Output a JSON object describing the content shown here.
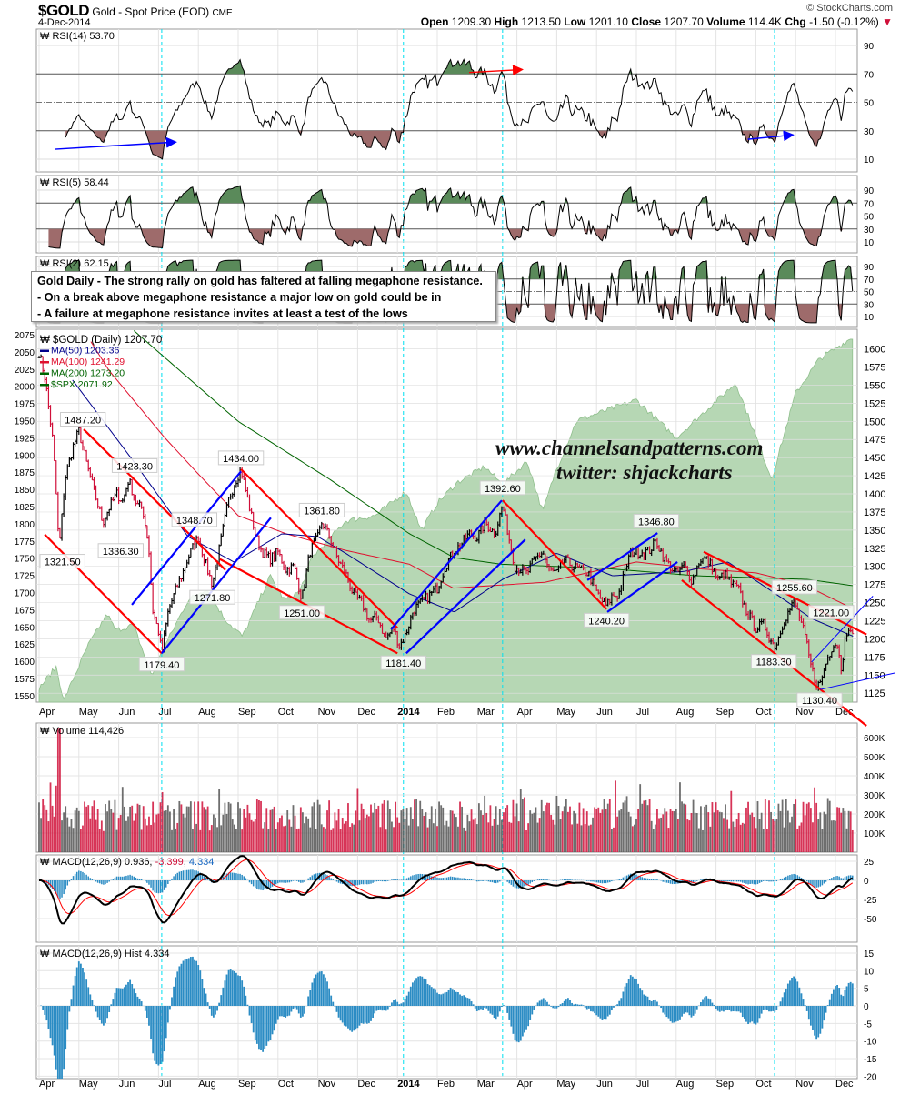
{
  "header": {
    "symbol": "$GOLD",
    "name": "Gold - Spot Price (EOD)",
    "exchange": "CME",
    "date": "4-Dec-2014",
    "brand": "© StockCharts.com",
    "open_label": "Open",
    "open": "1209.30",
    "high_label": "High",
    "high": "1213.50",
    "low_label": "Low",
    "low": "1201.10",
    "close_label": "Close",
    "close": "1207.70",
    "volume_label": "Volume",
    "volume": "114.4K",
    "chg_label": "Chg",
    "chg": "-1.50 (-0.12%)"
  },
  "note": {
    "title": "Gold Daily - The strong rally on gold has faltered at falling megaphone resistance.",
    "line1": "- On a break above megaphone resistance a major low on gold could be in",
    "line2": "- A failure at megaphone resistance invites at least a test of the lows"
  },
  "watermark": {
    "site": "www.channelsandpatterns.com",
    "twitter": "twitter: shjackcharts"
  },
  "chart_data": {
    "type": "line",
    "title": "$GOLD (Daily) 1207.70",
    "colors": {
      "up": "#000000",
      "down": "#d0103a",
      "ma50": "#00008b",
      "ma100": "#e0102e",
      "ma200": "#006400",
      "spx": "#b6d7b4",
      "spx_line": "#8fbf8c",
      "channel_red": "#ff0000",
      "channel_blue": "#0000ff",
      "vline": "#00e0f0",
      "rsi_hi": "#5a8a5a",
      "rsi_lo": "#9e6b6b",
      "macd": "#000000",
      "signal": "#ff0000",
      "hist": "#2b8cc4"
    },
    "x_months": [
      "Apr",
      "May",
      "Jun",
      "Jul",
      "Aug",
      "Sep",
      "Oct",
      "Nov",
      "Dec",
      "2014",
      "Feb",
      "Mar",
      "Apr",
      "May",
      "Jun",
      "Jul",
      "Aug",
      "Sep",
      "Oct",
      "Nov",
      "Dec"
    ],
    "x_range_months": [
      0,
      20.47
    ],
    "vertical_markers_month": [
      3.08,
      9.15,
      11.64,
      18.47
    ],
    "gold_axis": {
      "ticks": [
        1600,
        1575,
        1550,
        1525,
        1500,
        1475,
        1450,
        1425,
        1400,
        1375,
        1350,
        1325,
        1300,
        1275,
        1250,
        1225,
        1200,
        1175,
        1150,
        1125
      ],
      "range": [
        1106,
        1610
      ]
    },
    "spx_axis": {
      "ticks": [
        2075,
        2050,
        2025,
        2000,
        1975,
        1950,
        1925,
        1900,
        1875,
        1850,
        1825,
        1800,
        1775,
        1750,
        1725,
        1700,
        1675,
        1650,
        1625,
        1600,
        1575,
        1550
      ],
      "range": [
        1534,
        2090
      ]
    },
    "legend": [
      {
        "label": "$GOLD (Daily)",
        "value": "1207.70",
        "color": "#000000"
      },
      {
        "label": "MA(50)",
        "value": "1203.36",
        "color": "#00008b"
      },
      {
        "label": "MA(100)",
        "value": "1241.29",
        "color": "#e0102e"
      },
      {
        "label": "MA(200)",
        "value": "1273.20",
        "color": "#006400"
      },
      {
        "label": "$SPX",
        "value": "2071.92",
        "color": "#006400"
      }
    ],
    "gold_keypoints": [
      [
        0,
        1595
      ],
      [
        0.15,
        1560
      ],
      [
        0.35,
        1470
      ],
      [
        0.45,
        1380
      ],
      [
        0.5,
        1321
      ],
      [
        0.65,
        1420
      ],
      [
        0.85,
        1465
      ],
      [
        1.0,
        1487
      ],
      [
        1.2,
        1440
      ],
      [
        1.4,
        1400
      ],
      [
        1.6,
        1360
      ],
      [
        1.75,
        1380
      ],
      [
        1.95,
        1400
      ],
      [
        2.1,
        1390
      ],
      [
        2.25,
        1420
      ],
      [
        2.45,
        1385
      ],
      [
        2.6,
        1380
      ],
      [
        2.75,
        1330
      ],
      [
        2.85,
        1240
      ],
      [
        3.0,
        1210
      ],
      [
        3.08,
        1180
      ],
      [
        3.25,
        1240
      ],
      [
        3.45,
        1270
      ],
      [
        3.6,
        1290
      ],
      [
        3.8,
        1320
      ],
      [
        4.0,
        1340
      ],
      [
        4.2,
        1300
      ],
      [
        4.35,
        1275
      ],
      [
        4.55,
        1330
      ],
      [
        4.75,
        1390
      ],
      [
        4.95,
        1420
      ],
      [
        5.07,
        1434
      ],
      [
        5.25,
        1390
      ],
      [
        5.45,
        1340
      ],
      [
        5.6,
        1320
      ],
      [
        5.8,
        1310
      ],
      [
        6.0,
        1320
      ],
      [
        6.2,
        1295
      ],
      [
        6.4,
        1300
      ],
      [
        6.6,
        1255
      ],
      [
        6.8,
        1320
      ],
      [
        7.0,
        1340
      ],
      [
        7.1,
        1361
      ],
      [
        7.3,
        1340
      ],
      [
        7.5,
        1310
      ],
      [
        7.7,
        1290
      ],
      [
        7.9,
        1260
      ],
      [
        8.1,
        1250
      ],
      [
        8.3,
        1225
      ],
      [
        8.5,
        1230
      ],
      [
        8.7,
        1200
      ],
      [
        8.9,
        1215
      ],
      [
        9.05,
        1190
      ],
      [
        9.2,
        1205
      ],
      [
        9.4,
        1240
      ],
      [
        9.6,
        1250
      ],
      [
        9.8,
        1260
      ],
      [
        10.0,
        1270
      ],
      [
        10.2,
        1300
      ],
      [
        10.4,
        1320
      ],
      [
        10.6,
        1330
      ],
      [
        10.8,
        1345
      ],
      [
        11.0,
        1340
      ],
      [
        11.2,
        1360
      ],
      [
        11.45,
        1345
      ],
      [
        11.64,
        1385
      ],
      [
        11.8,
        1340
      ],
      [
        11.95,
        1300
      ],
      [
        12.1,
        1295
      ],
      [
        12.25,
        1290
      ],
      [
        12.45,
        1310
      ],
      [
        12.65,
        1320
      ],
      [
        12.8,
        1295
      ],
      [
        13.0,
        1290
      ],
      [
        13.2,
        1310
      ],
      [
        13.4,
        1300
      ],
      [
        13.6,
        1295
      ],
      [
        13.8,
        1290
      ],
      [
        13.95,
        1270
      ],
      [
        14.1,
        1255
      ],
      [
        14.25,
        1245
      ],
      [
        14.4,
        1260
      ],
      [
        14.55,
        1260
      ],
      [
        14.7,
        1290
      ],
      [
        14.85,
        1320
      ],
      [
        15.1,
        1320
      ],
      [
        15.3,
        1320
      ],
      [
        15.5,
        1335
      ],
      [
        15.7,
        1310
      ],
      [
        15.85,
        1300
      ],
      [
        16.0,
        1290
      ],
      [
        16.2,
        1300
      ],
      [
        16.4,
        1280
      ],
      [
        16.6,
        1310
      ],
      [
        16.75,
        1310
      ],
      [
        16.9,
        1300
      ],
      [
        17.05,
        1280
      ],
      [
        17.2,
        1290
      ],
      [
        17.4,
        1275
      ],
      [
        17.55,
        1270
      ],
      [
        17.75,
        1240
      ],
      [
        18.0,
        1215
      ],
      [
        18.2,
        1220
      ],
      [
        18.4,
        1195
      ],
      [
        18.5,
        1190
      ],
      [
        18.7,
        1225
      ],
      [
        18.9,
        1245
      ],
      [
        18.97,
        1250
      ],
      [
        19.1,
        1230
      ],
      [
        19.25,
        1200
      ],
      [
        19.35,
        1170
      ],
      [
        19.5,
        1140
      ],
      [
        19.6,
        1135
      ],
      [
        19.75,
        1165
      ],
      [
        19.95,
        1195
      ],
      [
        20.08,
        1190
      ],
      [
        20.15,
        1150
      ],
      [
        20.25,
        1215
      ],
      [
        20.35,
        1205
      ],
      [
        20.45,
        1207.7
      ]
    ],
    "ma50": [
      [
        0.84,
        1557
      ],
      [
        2.37,
        1445
      ],
      [
        3.74,
        1341
      ],
      [
        4.89,
        1306
      ],
      [
        6.1,
        1345
      ],
      [
        7.0,
        1341
      ],
      [
        7.7,
        1318
      ],
      [
        9.3,
        1262
      ],
      [
        10.43,
        1237
      ],
      [
        11.64,
        1282
      ],
      [
        13.0,
        1318
      ],
      [
        14.4,
        1287
      ],
      [
        16.2,
        1293
      ],
      [
        17.3,
        1306
      ],
      [
        18.5,
        1262
      ],
      [
        19.4,
        1228
      ],
      [
        20.45,
        1203.36
      ]
    ],
    "ma100": [
      [
        1.3,
        1610
      ],
      [
        1.76,
        1570
      ],
      [
        3.13,
        1479
      ],
      [
        3.97,
        1429
      ],
      [
        5.0,
        1370
      ],
      [
        6.2,
        1345
      ],
      [
        7.7,
        1322
      ],
      [
        9.3,
        1303
      ],
      [
        10.4,
        1270
      ],
      [
        12.7,
        1278
      ],
      [
        15.0,
        1306
      ],
      [
        16.5,
        1297
      ],
      [
        18.0,
        1291
      ],
      [
        19.2,
        1275
      ],
      [
        20.45,
        1241.29
      ]
    ],
    "ma200": [
      [
        2.28,
        1630
      ],
      [
        5.0,
        1500
      ],
      [
        7.3,
        1420
      ],
      [
        9.3,
        1345
      ],
      [
        10.43,
        1312
      ],
      [
        11.6,
        1303
      ],
      [
        14.25,
        1297
      ],
      [
        16.5,
        1287
      ],
      [
        19.3,
        1282
      ],
      [
        20.45,
        1273.2
      ]
    ],
    "spx": [
      [
        0,
        1561
      ],
      [
        0.43,
        1592
      ],
      [
        0.62,
        1543
      ],
      [
        1.23,
        1623
      ],
      [
        1.71,
        1669
      ],
      [
        1.92,
        1645
      ],
      [
        2.37,
        1653
      ],
      [
        2.83,
        1579
      ],
      [
        3.13,
        1619
      ],
      [
        3.74,
        1689
      ],
      [
        4.2,
        1706
      ],
      [
        4.66,
        1662
      ],
      [
        5.11,
        1636
      ],
      [
        5.8,
        1724
      ],
      [
        6.16,
        1689
      ],
      [
        6.55,
        1702
      ],
      [
        6.85,
        1751
      ],
      [
        7.7,
        1804
      ],
      [
        8.45,
        1812
      ],
      [
        8.84,
        1830
      ],
      [
        9.22,
        1847
      ],
      [
        9.6,
        1790
      ],
      [
        10.0,
        1830
      ],
      [
        10.5,
        1860
      ],
      [
        11.19,
        1883
      ],
      [
        11.64,
        1857
      ],
      [
        12.26,
        1891
      ],
      [
        12.65,
        1817
      ],
      [
        12.95,
        1873
      ],
      [
        13.5,
        1950
      ],
      [
        15.0,
        1980
      ],
      [
        16.0,
        1925
      ],
      [
        17.5,
        2005
      ],
      [
        18.4,
        1865
      ],
      [
        19.0,
        1990
      ],
      [
        19.6,
        2040
      ],
      [
        20.45,
        2072
      ]
    ],
    "annotations": [
      {
        "text": "1487.20",
        "m": 1.1,
        "p": 1487.2,
        "pos": "above"
      },
      {
        "text": "1321.50",
        "m": 0.45,
        "p": 1321.5,
        "pos": "below"
      },
      {
        "text": "1423.30",
        "m": 2.4,
        "p": 1423.3,
        "pos": "above"
      },
      {
        "text": "1336.30",
        "m": 2.05,
        "p": 1336.3,
        "pos": "below"
      },
      {
        "text": "1348.70",
        "m": 3.9,
        "p": 1348.7,
        "pos": "above"
      },
      {
        "text": "1271.80",
        "m": 4.35,
        "p": 1271.8,
        "pos": "below"
      },
      {
        "text": "1179.40",
        "m": 3.08,
        "p": 1179.4,
        "pos": "below"
      },
      {
        "text": "1434.00",
        "m": 5.07,
        "p": 1434.0,
        "pos": "above"
      },
      {
        "text": "1361.80",
        "m": 7.1,
        "p": 1361.8,
        "pos": "above"
      },
      {
        "text": "1251.00",
        "m": 6.6,
        "p": 1251.0,
        "pos": "below"
      },
      {
        "text": "1181.40",
        "m": 9.15,
        "p": 1181.4,
        "pos": "below"
      },
      {
        "text": "1392.60",
        "m": 11.64,
        "p": 1392.6,
        "pos": "above"
      },
      {
        "text": "1240.20",
        "m": 14.25,
        "p": 1240.2,
        "pos": "below"
      },
      {
        "text": "1346.80",
        "m": 15.5,
        "p": 1346.8,
        "pos": "above"
      },
      {
        "text": "1255.60",
        "m": 18.97,
        "p": 1255.6,
        "pos": "above"
      },
      {
        "text": "1183.30",
        "m": 18.45,
        "p": 1183.3,
        "pos": "below"
      },
      {
        "text": "1130.40",
        "m": 19.6,
        "p": 1130.4,
        "pos": "below"
      },
      {
        "text": "1221.00",
        "m": 20.25,
        "p": 1221.0,
        "pos": "above"
      }
    ],
    "trendlines": [
      {
        "color": "red",
        "pts": [
          [
            0.14,
            1344
          ],
          [
            3.08,
            1180
          ]
        ]
      },
      {
        "color": "red",
        "pts": [
          [
            1.12,
            1489
          ],
          [
            4.68,
            1295
          ]
        ]
      },
      {
        "color": "red",
        "pts": [
          [
            5.07,
            1434
          ],
          [
            9.0,
            1215
          ]
        ]
      },
      {
        "color": "red",
        "pts": [
          [
            4.54,
            1310
          ],
          [
            9.0,
            1180
          ]
        ]
      },
      {
        "color": "red",
        "pts": [
          [
            11.64,
            1391
          ],
          [
            14.25,
            1241
          ]
        ]
      },
      {
        "color": "red",
        "pts": [
          [
            16.69,
            1320
          ],
          [
            20.78,
            1206
          ]
        ]
      },
      {
        "color": "red",
        "pts": [
          [
            16.14,
            1281
          ],
          [
            20.78,
            1080
          ]
        ]
      },
      {
        "color": "blue",
        "pts": [
          [
            2.33,
            1247
          ],
          [
            5.07,
            1431
          ]
        ]
      },
      {
        "color": "blue",
        "pts": [
          [
            3.08,
            1180
          ],
          [
            5.82,
            1367
          ]
        ]
      },
      {
        "color": "blue",
        "pts": [
          [
            8.84,
            1213
          ],
          [
            11.62,
            1391
          ]
        ]
      },
      {
        "color": "blue",
        "pts": [
          [
            9.22,
            1180
          ],
          [
            12.21,
            1337
          ]
        ]
      },
      {
        "color": "blue",
        "pts": [
          [
            13.77,
            1281
          ],
          [
            15.53,
            1346
          ]
        ]
      },
      {
        "color": "blue",
        "pts": [
          [
            14.27,
            1237
          ],
          [
            16.03,
            1306
          ]
        ]
      },
      {
        "color": "blue",
        "thin": true,
        "pts": [
          [
            19.4,
            1168
          ],
          [
            20.94,
            1259
          ]
        ]
      },
      {
        "color": "blue",
        "thin": true,
        "pts": [
          [
            19.61,
            1130
          ],
          [
            21.5,
            1153
          ]
        ]
      }
    ],
    "rsi": [
      {
        "label": "RSI(14)",
        "value": "53.70",
        "period": 14,
        "ticks": [
          90,
          70,
          50,
          30,
          10
        ]
      },
      {
        "label": "RSI(5)",
        "value": "58.44",
        "period": 5,
        "ticks": [
          90,
          70,
          50,
          30,
          10
        ]
      },
      {
        "label": "RSI(2)",
        "value": "62.15",
        "period": 2,
        "ticks": [
          90,
          70,
          50,
          30,
          10
        ]
      }
    ],
    "rsi_arrows": [
      {
        "color": "red",
        "from": [
          10.8,
          71
        ],
        "to": [
          12.1,
          73
        ]
      },
      {
        "color": "blue",
        "from": [
          0.4,
          17
        ],
        "to": [
          3.4,
          22
        ]
      },
      {
        "color": "blue",
        "from": [
          17.8,
          24
        ],
        "to": [
          18.9,
          27
        ]
      }
    ],
    "volume": {
      "label": "Volume",
      "value": "114,426",
      "ticks": [
        "600K",
        "500K",
        "400K",
        "300K",
        "200K",
        "100K"
      ],
      "tick_values": [
        600000,
        500000,
        400000,
        300000,
        200000,
        100000
      ],
      "spike": {
        "m": 0.5,
        "v": 650000
      },
      "last": 114426
    },
    "macd": {
      "label": "MACD(12,26,9)",
      "macd": "0.936",
      "signal": "-3.399",
      "hist": "4.334",
      "ticks": [
        25,
        0,
        -25,
        -50
      ]
    },
    "hist": {
      "label": "MACD(12,26,9) Hist",
      "value": "4.334",
      "ticks": [
        15,
        10,
        5,
        0,
        -5,
        -10,
        -15,
        -20
      ]
    }
  }
}
